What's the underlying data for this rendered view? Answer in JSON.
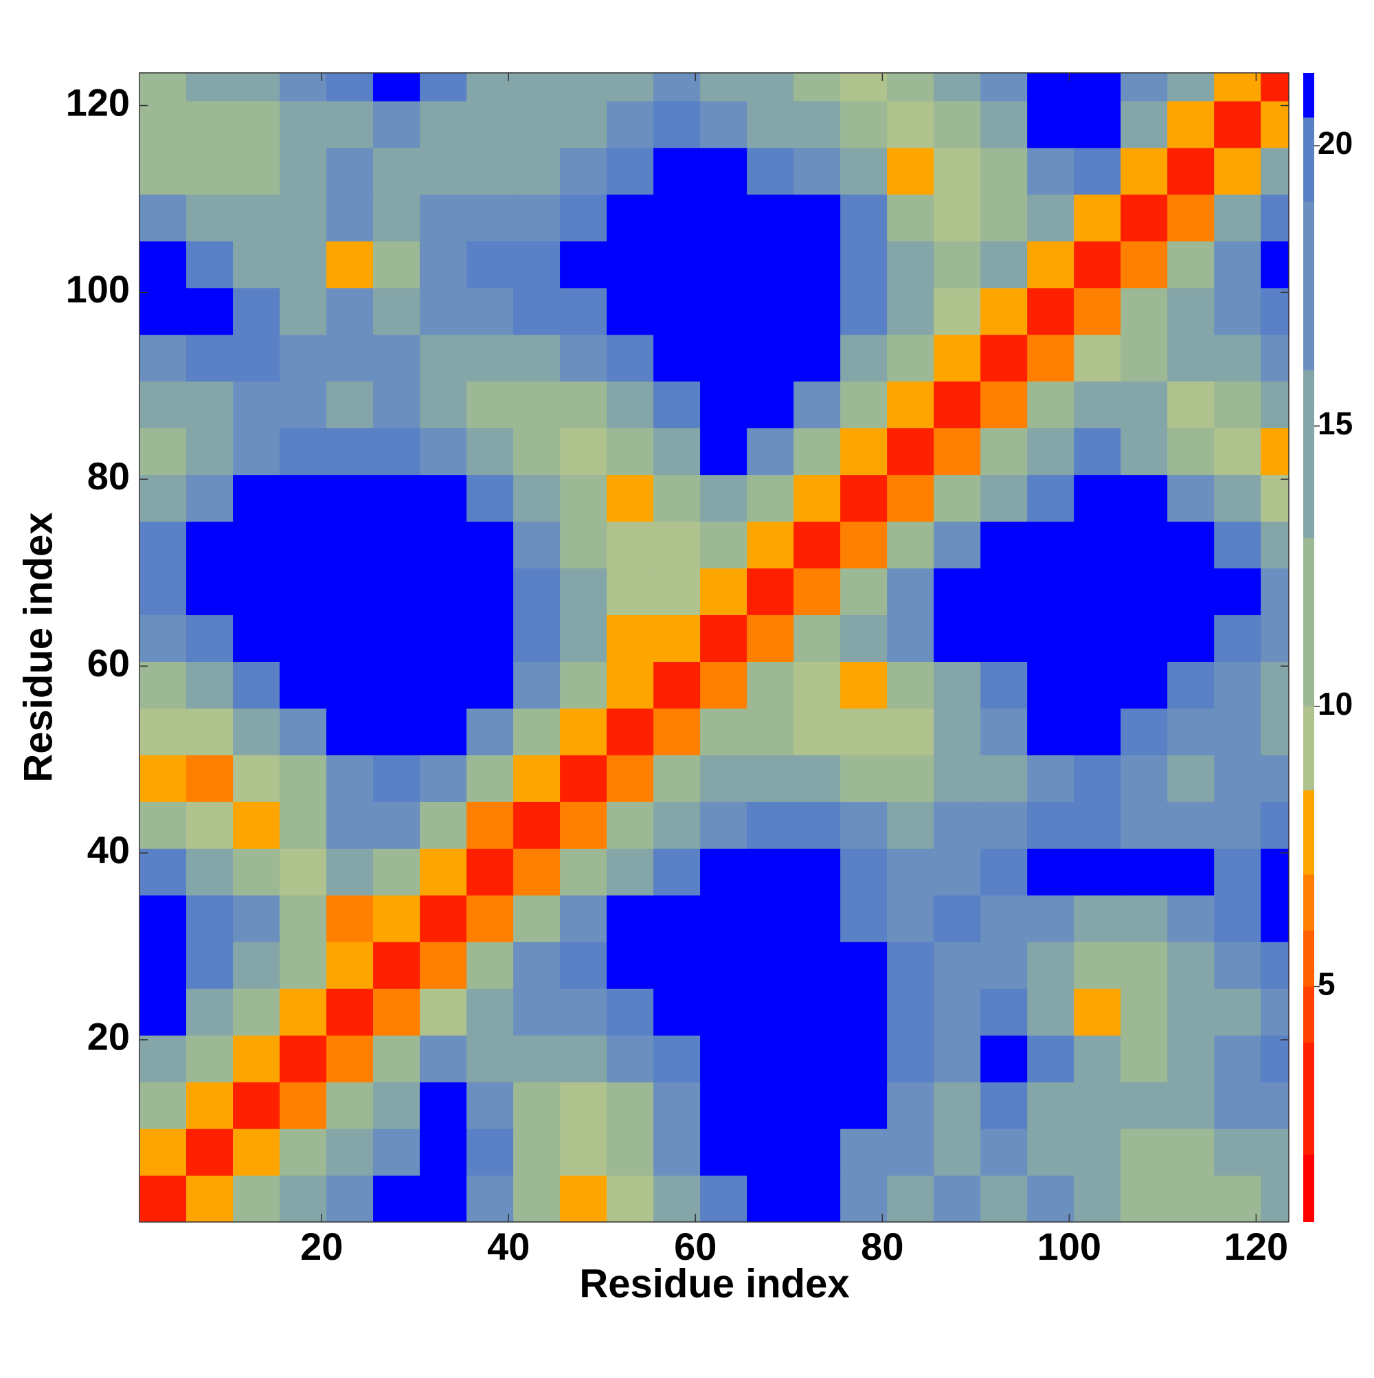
{
  "chart_data": {
    "type": "heatmap",
    "xlabel": "Residue index",
    "ylabel": "Residue index",
    "x": [
      3,
      8,
      13,
      18,
      23,
      28,
      33,
      38,
      43,
      48,
      53,
      58,
      63,
      68,
      73,
      78,
      83,
      88,
      93,
      98,
      103,
      108,
      113,
      118,
      123
    ],
    "y": [
      3,
      8,
      13,
      18,
      23,
      28,
      33,
      38,
      43,
      48,
      53,
      58,
      63,
      68,
      73,
      78,
      83,
      88,
      93,
      98,
      103,
      108,
      113,
      118,
      123
    ],
    "z": [
      [
        3,
        8,
        12,
        15,
        18,
        21,
        21,
        18,
        12,
        8,
        10,
        16,
        20,
        21,
        21,
        18,
        16,
        18,
        16,
        18,
        15,
        13,
        12,
        13,
        15
      ],
      [
        8,
        3,
        8,
        12,
        14,
        18,
        21,
        20,
        13,
        9,
        11,
        17,
        21,
        21,
        21,
        18,
        17,
        16,
        18,
        15,
        14,
        12,
        13,
        14,
        16
      ],
      [
        12,
        8,
        3,
        7,
        11,
        16,
        21,
        18,
        11,
        10,
        13,
        18,
        21,
        21,
        21,
        21,
        18,
        16,
        20,
        16,
        16,
        14,
        16,
        17,
        18
      ],
      [
        16,
        12,
        8,
        3,
        7,
        12,
        18,
        16,
        14,
        15,
        17,
        20,
        21,
        21,
        21,
        21,
        20,
        18,
        21,
        20,
        14,
        13,
        16,
        18,
        20
      ],
      [
        21,
        16,
        11,
        8,
        3,
        7,
        10,
        14,
        17,
        18,
        20,
        21,
        21,
        21,
        21,
        21,
        20,
        18,
        20,
        16,
        8,
        12,
        14,
        16,
        18
      ],
      [
        21,
        20,
        15,
        11,
        8,
        3,
        7,
        12,
        18,
        20,
        21,
        21,
        21,
        21,
        21,
        21,
        20,
        19,
        18,
        15,
        12,
        13,
        16,
        18,
        20
      ],
      [
        21,
        20,
        17,
        12,
        7,
        8,
        3,
        7,
        12,
        18,
        21,
        21,
        21,
        21,
        21,
        20,
        18,
        20,
        19,
        17,
        16,
        16,
        18,
        20,
        21
      ],
      [
        20,
        16,
        12,
        10,
        14,
        12,
        8,
        3,
        7,
        12,
        16,
        20,
        21,
        21,
        21,
        20,
        17,
        19,
        20,
        21,
        21,
        21,
        21,
        20,
        21
      ],
      [
        11,
        9,
        8,
        12,
        17,
        18,
        12,
        7,
        3,
        7,
        12,
        16,
        18,
        20,
        20,
        18,
        16,
        17,
        18,
        20,
        20,
        19,
        18,
        18,
        20
      ],
      [
        8,
        7,
        9,
        13,
        18,
        20,
        18,
        12,
        8,
        3,
        7,
        12,
        15,
        16,
        15,
        13,
        12,
        14,
        16,
        18,
        20,
        18,
        16,
        17,
        18
      ],
      [
        9,
        10,
        14,
        18,
        21,
        21,
        21,
        18,
        12,
        8,
        3,
        7,
        12,
        13,
        10,
        9,
        9,
        14,
        18,
        21,
        21,
        20,
        18,
        17,
        16
      ],
      [
        13,
        16,
        20,
        21,
        21,
        21,
        21,
        21,
        18,
        12,
        8,
        3,
        7,
        11,
        9,
        8,
        12,
        16,
        20,
        21,
        21,
        21,
        20,
        18,
        16
      ],
      [
        18,
        20,
        21,
        21,
        21,
        21,
        21,
        21,
        20,
        15,
        8,
        8,
        3,
        7,
        12,
        15,
        18,
        21,
        21,
        21,
        21,
        21,
        21,
        20,
        17
      ],
      [
        20,
        21,
        21,
        21,
        21,
        21,
        21,
        21,
        20,
        14,
        10,
        9,
        8,
        3,
        7,
        12,
        18,
        21,
        21,
        21,
        21,
        21,
        21,
        21,
        18
      ],
      [
        20,
        21,
        21,
        21,
        21,
        21,
        21,
        21,
        18,
        12,
        9,
        10,
        12,
        8,
        3,
        7,
        12,
        18,
        21,
        21,
        21,
        21,
        21,
        20,
        16
      ],
      [
        16,
        18,
        21,
        21,
        21,
        21,
        21,
        20,
        16,
        11,
        8,
        11,
        16,
        12,
        8,
        3,
        7,
        12,
        16,
        20,
        21,
        21,
        18,
        14,
        9
      ],
      [
        13,
        14,
        18,
        20,
        20,
        20,
        18,
        16,
        13,
        9,
        11,
        14,
        21,
        18,
        12,
        8,
        3,
        7,
        12,
        16,
        20,
        16,
        12,
        9,
        8
      ],
      [
        14,
        16,
        18,
        18,
        16,
        17,
        16,
        13,
        12,
        13,
        16,
        20,
        21,
        21,
        18,
        12,
        8,
        3,
        7,
        12,
        16,
        14,
        10,
        12,
        14
      ],
      [
        18,
        20,
        20,
        18,
        19,
        18,
        16,
        15,
        16,
        18,
        20,
        21,
        21,
        21,
        21,
        16,
        12,
        8,
        3,
        7,
        10,
        12,
        14,
        16,
        18
      ],
      [
        21,
        21,
        20,
        16,
        18,
        16,
        18,
        18,
        20,
        20,
        21,
        21,
        21,
        21,
        21,
        20,
        16,
        9,
        8,
        3,
        7,
        11,
        14,
        18,
        20
      ],
      [
        21,
        20,
        16,
        14,
        8,
        12,
        18,
        20,
        20,
        21,
        21,
        21,
        21,
        21,
        21,
        20,
        14,
        12,
        14,
        8,
        3,
        7,
        12,
        18,
        21
      ],
      [
        18,
        16,
        14,
        15,
        17,
        16,
        18,
        18,
        18,
        20,
        21,
        21,
        21,
        21,
        21,
        20,
        13,
        10,
        12,
        14,
        8,
        3,
        7,
        14,
        20
      ],
      [
        12,
        12,
        13,
        16,
        18,
        16,
        16,
        14,
        16,
        18,
        20,
        21,
        21,
        20,
        18,
        14,
        8,
        9,
        13,
        17,
        20,
        8,
        3,
        8,
        14
      ],
      [
        11,
        12,
        12,
        14,
        16,
        18,
        16,
        14,
        14,
        16,
        18,
        20,
        18,
        16,
        14,
        12,
        9,
        12,
        16,
        21,
        21,
        14,
        8,
        3,
        8
      ],
      [
        13,
        14,
        16,
        18,
        20,
        21,
        20,
        16,
        14,
        15,
        16,
        18,
        16,
        14,
        12,
        10,
        12,
        16,
        18,
        21,
        21,
        18,
        14,
        8,
        3
      ]
    ],
    "xlim": [
      0.5,
      123.5
    ],
    "ylim": [
      0.5,
      123.5
    ],
    "xticks": [
      20,
      40,
      60,
      80,
      100,
      120
    ],
    "yticks": [
      20,
      40,
      60,
      80,
      100,
      120
    ],
    "colorbar": {
      "zlim": [
        0.8,
        21.3
      ],
      "ticks": [
        5,
        10,
        15,
        20
      ]
    },
    "colorscale": [
      [
        2,
        "#ff0000"
      ],
      [
        4,
        "#ff2000"
      ],
      [
        5,
        "#ff4000"
      ],
      [
        6,
        "#ff6000"
      ],
      [
        7,
        "#ff8000"
      ],
      [
        8.5,
        "#ffa500"
      ],
      [
        10,
        "#b0c28e"
      ],
      [
        13,
        "#9cb894"
      ],
      [
        16,
        "#84a6a8"
      ],
      [
        19,
        "#6b8fbf"
      ],
      [
        20.5,
        "#5a80c6"
      ],
      [
        21.3,
        "#0000ff"
      ]
    ]
  }
}
